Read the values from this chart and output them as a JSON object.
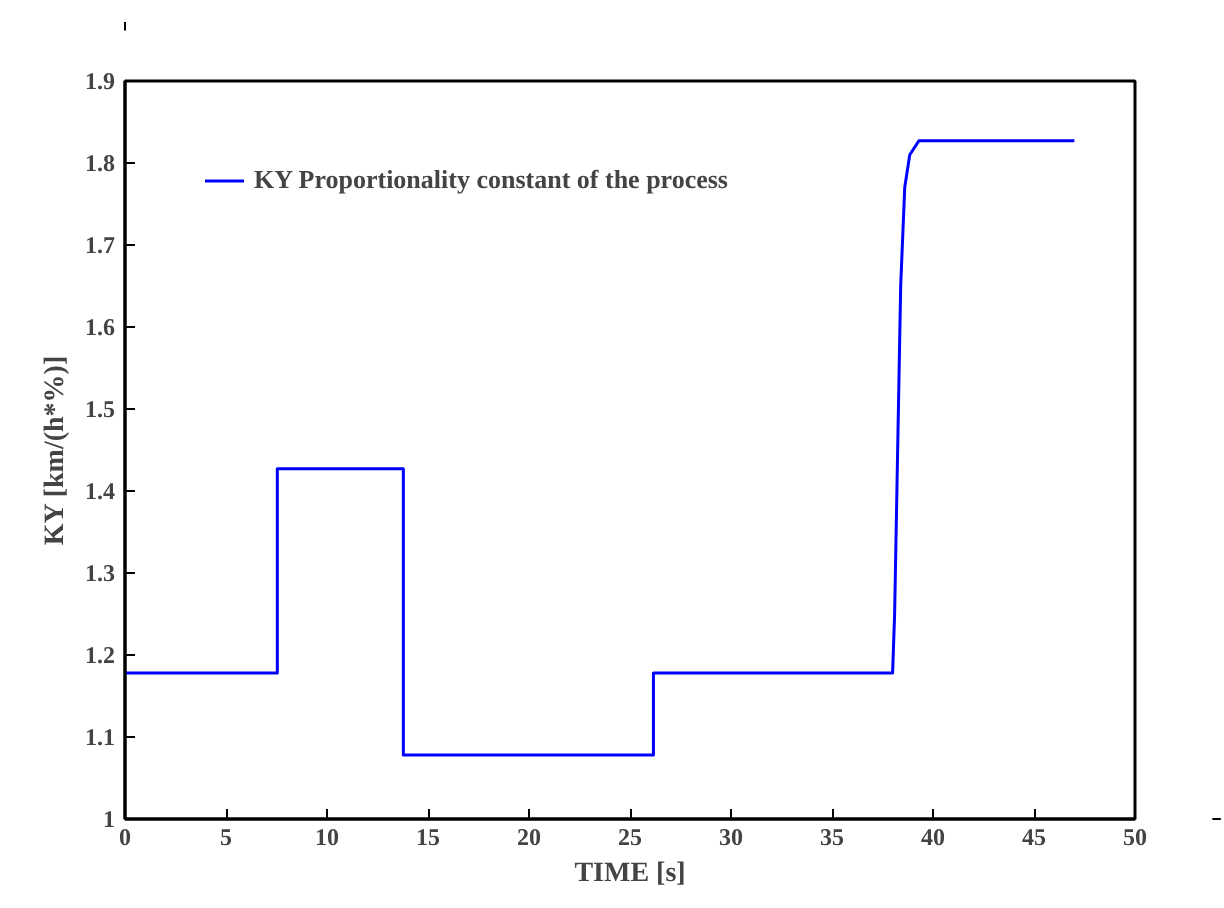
{
  "chart_data": {
    "type": "line",
    "xlabel": "TIME [s]",
    "ylabel": "KY [km/(h*%)]",
    "xlim": [
      0,
      50
    ],
    "xticks": [
      0,
      5,
      10,
      15,
      20,
      25,
      30,
      35,
      40,
      45,
      50
    ],
    "ylim": [
      1,
      1.9
    ],
    "yticks": [
      1,
      1.1,
      1.2,
      1.3,
      1.4,
      1.5,
      1.6,
      1.7,
      1.8,
      1.9
    ],
    "grid": false,
    "legend": "top left",
    "marker": "none",
    "line_style": "solid",
    "series": [
      {
        "name": "KY Proportionality constant of the process",
        "color": "#0000ff",
        "x": [
          0,
          7.54,
          7.54,
          13.78,
          13.78,
          26.16,
          26.16,
          38.0,
          38.1,
          38.25,
          38.4,
          38.6,
          38.85,
          39.3,
          47
        ],
        "values": [
          1.178,
          1.178,
          1.427,
          1.427,
          1.078,
          1.078,
          1.178,
          1.178,
          1.25,
          1.45,
          1.65,
          1.77,
          1.81,
          1.827,
          1.827
        ]
      }
    ]
  }
}
